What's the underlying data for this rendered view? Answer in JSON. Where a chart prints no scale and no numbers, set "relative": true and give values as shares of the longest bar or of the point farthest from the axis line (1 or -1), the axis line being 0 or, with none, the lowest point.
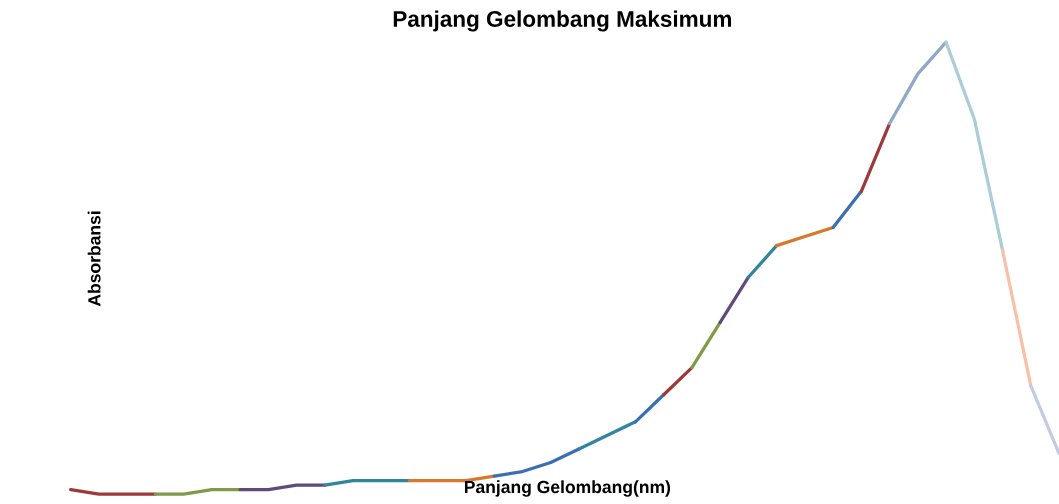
{
  "chart_data": {
    "type": "line",
    "title": "Panjang Gelombang Maksimum",
    "xlabel": "Panjang Gelombang(nm)",
    "ylabel": "Absorbansi",
    "relative": true,
    "categories": [
      null,
      null,
      null,
      null,
      null,
      null,
      null,
      null,
      null,
      null,
      null,
      null,
      null,
      null,
      null,
      null,
      null,
      null,
      null,
      null,
      null,
      null,
      null,
      null,
      null,
      null,
      null,
      null,
      null,
      null,
      null,
      null,
      null,
      null,
      null,
      null
    ],
    "series": [
      {
        "color": "#9b3a38",
        "values": [
          0.01,
          0,
          0,
          0,
          null,
          null,
          null,
          null,
          null,
          null,
          null,
          null,
          null,
          null,
          null,
          null,
          null,
          null,
          null,
          null,
          null,
          null,
          null,
          null,
          null,
          null,
          null,
          null,
          null,
          null,
          null,
          null,
          null,
          null,
          null,
          null
        ]
      },
      {
        "color": "#7f9a48",
        "values": [
          null,
          null,
          null,
          0,
          0,
          0.01,
          0.01,
          null,
          null,
          null,
          null,
          null,
          null,
          null,
          null,
          null,
          null,
          null,
          null,
          null,
          null,
          null,
          null,
          null,
          null,
          null,
          null,
          null,
          null,
          null,
          null,
          null,
          null,
          null,
          null,
          null
        ]
      },
      {
        "color": "#604a7b",
        "values": [
          null,
          null,
          null,
          null,
          null,
          null,
          0.01,
          0.01,
          0.02,
          0.02,
          null,
          null,
          null,
          null,
          null,
          null,
          null,
          null,
          null,
          null,
          null,
          null,
          null,
          null,
          null,
          null,
          null,
          null,
          null,
          null,
          null,
          null,
          null,
          null,
          null,
          null
        ]
      },
      {
        "color": "#31859c",
        "values": [
          null,
          null,
          null,
          null,
          null,
          null,
          null,
          null,
          null,
          0.02,
          0.03,
          0.03,
          0.03,
          null,
          null,
          null,
          null,
          null,
          null,
          null,
          null,
          null,
          null,
          null,
          null,
          null,
          null,
          null,
          null,
          null,
          null,
          null,
          null,
          null,
          null,
          null
        ]
      },
      {
        "color": "#d9782b",
        "values": [
          null,
          null,
          null,
          null,
          null,
          null,
          null,
          null,
          null,
          null,
          null,
          null,
          0.03,
          0.03,
          0.03,
          0.04,
          null,
          null,
          null,
          null,
          null,
          null,
          null,
          null,
          null,
          null,
          null,
          null,
          null,
          null,
          null,
          null,
          null,
          null,
          null,
          null
        ]
      },
      {
        "color": "#3c6eb4",
        "values": [
          null,
          null,
          null,
          null,
          null,
          null,
          null,
          null,
          null,
          null,
          null,
          null,
          null,
          null,
          null,
          0.04,
          0.05,
          0.07,
          0.1,
          null,
          null,
          null,
          null,
          null,
          null,
          null,
          null,
          null,
          null,
          null,
          null,
          null,
          null,
          null,
          null,
          null
        ]
      },
      {
        "color": "#31859c",
        "values": [
          null,
          null,
          null,
          null,
          null,
          null,
          null,
          null,
          null,
          null,
          null,
          null,
          null,
          null,
          null,
          null,
          null,
          null,
          0.1,
          0.13,
          0.16,
          null,
          null,
          null,
          null,
          null,
          null,
          null,
          null,
          null,
          null,
          null,
          null,
          null,
          null,
          null
        ]
      },
      {
        "color": "#3c6eb4",
        "values": [
          null,
          null,
          null,
          null,
          null,
          null,
          null,
          null,
          null,
          null,
          null,
          null,
          null,
          null,
          null,
          null,
          null,
          null,
          null,
          null,
          0.16,
          0.22,
          null,
          null,
          null,
          null,
          null,
          null,
          null,
          null,
          null,
          null,
          null,
          null,
          null,
          null
        ]
      },
      {
        "color": "#9b3a38",
        "values": [
          null,
          null,
          null,
          null,
          null,
          null,
          null,
          null,
          null,
          null,
          null,
          null,
          null,
          null,
          null,
          null,
          null,
          null,
          null,
          null,
          null,
          0.22,
          0.28,
          null,
          null,
          null,
          null,
          null,
          null,
          null,
          null,
          null,
          null,
          null,
          null,
          null
        ]
      },
      {
        "color": "#7f9a48",
        "values": [
          null,
          null,
          null,
          null,
          null,
          null,
          null,
          null,
          null,
          null,
          null,
          null,
          null,
          null,
          null,
          null,
          null,
          null,
          null,
          null,
          null,
          null,
          0.28,
          0.38,
          null,
          null,
          null,
          null,
          null,
          null,
          null,
          null,
          null,
          null,
          null,
          null
        ]
      },
      {
        "color": "#604a7b",
        "values": [
          null,
          null,
          null,
          null,
          null,
          null,
          null,
          null,
          null,
          null,
          null,
          null,
          null,
          null,
          null,
          null,
          null,
          null,
          null,
          null,
          null,
          null,
          null,
          0.38,
          0.48,
          null,
          null,
          null,
          null,
          null,
          null,
          null,
          null,
          null,
          null,
          null
        ]
      },
      {
        "color": "#31859c",
        "values": [
          null,
          null,
          null,
          null,
          null,
          null,
          null,
          null,
          null,
          null,
          null,
          null,
          null,
          null,
          null,
          null,
          null,
          null,
          null,
          null,
          null,
          null,
          null,
          null,
          0.48,
          0.55,
          null,
          null,
          null,
          null,
          null,
          null,
          null,
          null,
          null,
          null
        ]
      },
      {
        "color": "#d9782b",
        "values": [
          null,
          null,
          null,
          null,
          null,
          null,
          null,
          null,
          null,
          null,
          null,
          null,
          null,
          null,
          null,
          null,
          null,
          null,
          null,
          null,
          null,
          null,
          null,
          null,
          null,
          0.55,
          0.57,
          0.59,
          null,
          null,
          null,
          null,
          null,
          null,
          null,
          null
        ]
      },
      {
        "color": "#3c6eb4",
        "values": [
          null,
          null,
          null,
          null,
          null,
          null,
          null,
          null,
          null,
          null,
          null,
          null,
          null,
          null,
          null,
          null,
          null,
          null,
          null,
          null,
          null,
          null,
          null,
          null,
          null,
          null,
          null,
          0.59,
          0.67,
          null,
          null,
          null,
          null,
          null,
          null,
          null
        ]
      },
      {
        "color": "#9b3a38",
        "values": [
          null,
          null,
          null,
          null,
          null,
          null,
          null,
          null,
          null,
          null,
          null,
          null,
          null,
          null,
          null,
          null,
          null,
          null,
          null,
          null,
          null,
          null,
          null,
          null,
          null,
          null,
          null,
          null,
          0.67,
          0.82,
          null,
          null,
          null,
          null,
          null,
          null
        ]
      },
      {
        "color": "#8fa8c8",
        "values": [
          null,
          null,
          null,
          null,
          null,
          null,
          null,
          null,
          null,
          null,
          null,
          null,
          null,
          null,
          null,
          null,
          null,
          null,
          null,
          null,
          null,
          null,
          null,
          null,
          null,
          null,
          null,
          null,
          null,
          0.82,
          0.93,
          1,
          null,
          null,
          null,
          null
        ]
      },
      {
        "color": "#a9cdd9",
        "values": [
          null,
          null,
          null,
          null,
          null,
          null,
          null,
          null,
          null,
          null,
          null,
          null,
          null,
          null,
          null,
          null,
          null,
          null,
          null,
          null,
          null,
          null,
          null,
          null,
          null,
          null,
          null,
          null,
          null,
          null,
          null,
          1,
          0.83,
          0.54,
          null,
          null
        ]
      },
      {
        "color": "#f8c0a8",
        "values": [
          null,
          null,
          null,
          null,
          null,
          null,
          null,
          null,
          null,
          null,
          null,
          null,
          null,
          null,
          null,
          null,
          null,
          null,
          null,
          null,
          null,
          null,
          null,
          null,
          null,
          null,
          null,
          null,
          null,
          null,
          null,
          null,
          null,
          0.54,
          0.24,
          null
        ]
      },
      {
        "color": "#c3cbe3",
        "values": [
          null,
          null,
          null,
          null,
          null,
          null,
          null,
          null,
          null,
          null,
          null,
          null,
          null,
          null,
          null,
          null,
          null,
          null,
          null,
          null,
          null,
          null,
          null,
          null,
          null,
          null,
          null,
          null,
          null,
          null,
          null,
          null,
          null,
          null,
          0.24,
          0.09
        ]
      }
    ]
  }
}
